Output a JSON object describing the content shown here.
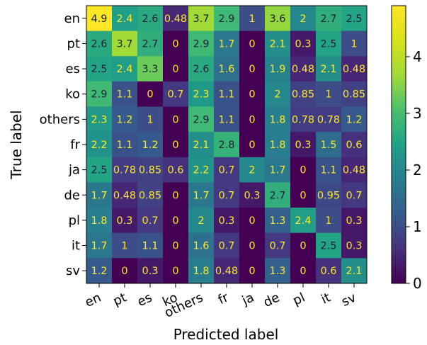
{
  "chart_data": {
    "type": "heatmap",
    "title": "",
    "xlabel": "Predicted label",
    "ylabel": "True label",
    "x_categories": [
      "en",
      "pt",
      "es",
      "ko",
      "others",
      "fr",
      "ja",
      "de",
      "pl",
      "it",
      "sv"
    ],
    "y_categories": [
      "en",
      "pt",
      "es",
      "ko",
      "others",
      "fr",
      "ja",
      "de",
      "pl",
      "it",
      "sv"
    ],
    "values": [
      [
        4.9,
        2.4,
        2.6,
        0.48,
        3.7,
        2.9,
        1,
        3.6,
        2,
        2.7,
        2.5
      ],
      [
        2.6,
        3.7,
        2.7,
        0,
        2.9,
        1.7,
        0,
        2.1,
        0.3,
        2.5,
        1
      ],
      [
        2.5,
        2.4,
        3.3,
        0,
        2.6,
        1.6,
        0,
        1.9,
        0.48,
        2.1,
        0.48
      ],
      [
        2.9,
        1.1,
        0,
        0.7,
        2.3,
        1.1,
        0,
        2,
        0.85,
        1,
        0.85
      ],
      [
        2.3,
        1.2,
        1,
        0,
        2.9,
        1.1,
        0,
        1.8,
        0.78,
        0.78,
        1.2
      ],
      [
        2.2,
        1.1,
        1.2,
        0,
        2.1,
        2.8,
        0,
        1.8,
        0.3,
        1.5,
        0.6
      ],
      [
        2.5,
        0.78,
        0.85,
        0.6,
        2.2,
        0.7,
        2,
        1.7,
        0,
        1.1,
        0.48
      ],
      [
        1.7,
        0.48,
        0.85,
        0,
        1.7,
        0.7,
        0.3,
        2.7,
        0,
        0.95,
        0.7
      ],
      [
        1.8,
        0.3,
        0.7,
        0,
        2,
        0.3,
        0,
        1.3,
        2.4,
        1,
        0.3
      ],
      [
        1.7,
        1,
        1.1,
        0,
        1.6,
        0.7,
        0,
        0.7,
        0,
        2.5,
        0.3
      ],
      [
        1.2,
        0,
        0.3,
        0,
        1.8,
        0.48,
        0,
        1.3,
        0,
        0.6,
        2.1
      ]
    ],
    "colormap": "viridis",
    "colorbar": {
      "min": 0,
      "max": 4.9,
      "ticks": [
        "0",
        "1",
        "2",
        "3",
        "4"
      ]
    },
    "grid": false,
    "legend": "none"
  }
}
